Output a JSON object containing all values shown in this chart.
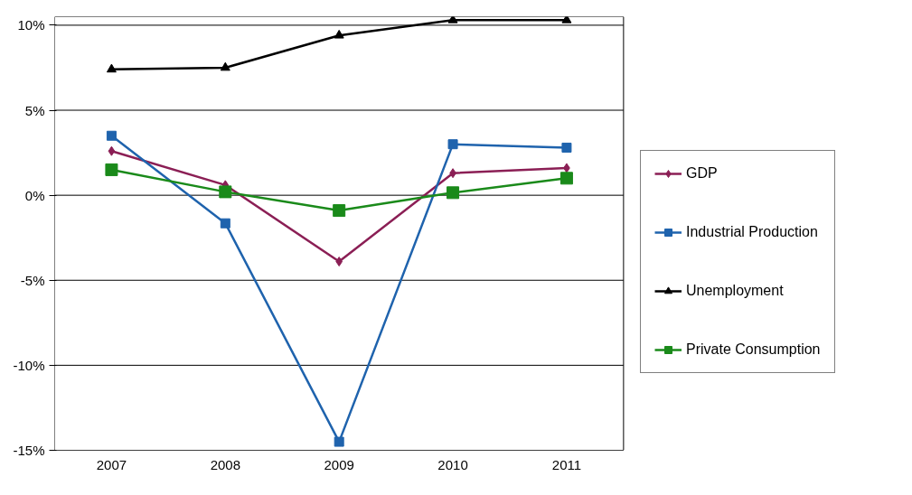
{
  "chart_data": {
    "type": "line",
    "categories": [
      "2007",
      "2008",
      "2009",
      "2010",
      "2011"
    ],
    "series": [
      {
        "name": "GDP",
        "color": "#8b1f55",
        "marker": "diamond",
        "values": [
          2.6,
          0.6,
          -3.9,
          1.3,
          1.6
        ]
      },
      {
        "name": "Industrial Production",
        "color": "#1f63ad",
        "marker": "square",
        "values": [
          3.5,
          -1.65,
          -14.5,
          3.0,
          2.8
        ]
      },
      {
        "name": "Unemployment",
        "color": "#000000",
        "marker": "triangle",
        "values": [
          7.4,
          7.5,
          9.4,
          10.3,
          10.3
        ]
      },
      {
        "name": "Private Consumption",
        "color": "#1a8a1a",
        "marker": "square",
        "values": [
          1.5,
          0.2,
          -0.9,
          0.15,
          1.0
        ]
      }
    ],
    "ylim": [
      -15,
      10.5
    ],
    "yticks": [
      {
        "value": 10,
        "label": "10%"
      },
      {
        "value": 5,
        "label": "5%"
      },
      {
        "value": 0,
        "label": "0%"
      },
      {
        "value": -5,
        "label": "-5%"
      },
      {
        "value": -10,
        "label": "-10%"
      },
      {
        "value": -15,
        "label": "-15%"
      }
    ],
    "grid": "y",
    "legend": "right",
    "line_style": "solid"
  }
}
